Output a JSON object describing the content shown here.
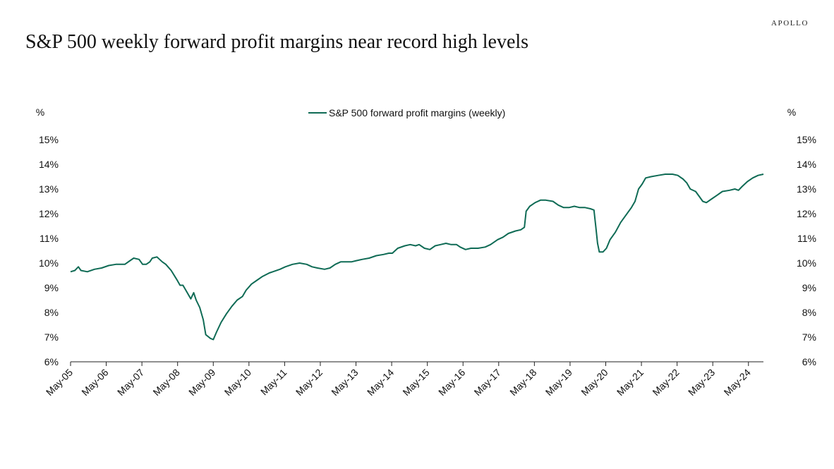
{
  "header": {
    "brand": "APOLLO",
    "title": "S&P 500 weekly forward profit margins near record high levels"
  },
  "chart_data": {
    "type": "line",
    "title": "S&P 500 weekly forward profit margins near record high levels",
    "y_unit_left": "%",
    "y_unit_right": "%",
    "ylim": [
      6,
      15
    ],
    "y_ticks": [
      6,
      7,
      8,
      9,
      10,
      11,
      12,
      13,
      14,
      15
    ],
    "y_tick_labels": [
      "6%",
      "7%",
      "8%",
      "9%",
      "10%",
      "11%",
      "12%",
      "13%",
      "14%",
      "15%"
    ],
    "x_range": [
      2005.33,
      2024.75
    ],
    "x_ticks": [
      2005.33,
      2006.33,
      2007.33,
      2008.33,
      2009.33,
      2010.33,
      2011.33,
      2012.33,
      2013.33,
      2014.33,
      2015.33,
      2016.33,
      2017.33,
      2018.33,
      2019.33,
      2020.33,
      2021.33,
      2022.33,
      2023.33,
      2024.33
    ],
    "x_tick_labels": [
      "May-05",
      "May-06",
      "May-07",
      "May-08",
      "May-09",
      "May-10",
      "May-11",
      "May-12",
      "May-13",
      "May-14",
      "May-15",
      "May-16",
      "May-17",
      "May-18",
      "May-19",
      "May-20",
      "May-21",
      "May-22",
      "May-23",
      "May-24"
    ],
    "legend_position": "top-center",
    "grid": false,
    "series": [
      {
        "name": "S&P 500 forward profit margins (weekly)",
        "color": "#0f6b55",
        "points": [
          [
            2005.33,
            9.65
          ],
          [
            2005.45,
            9.7
          ],
          [
            2005.55,
            9.85
          ],
          [
            2005.62,
            9.7
          ],
          [
            2005.8,
            9.65
          ],
          [
            2006.0,
            9.75
          ],
          [
            2006.2,
            9.8
          ],
          [
            2006.4,
            9.9
          ],
          [
            2006.6,
            9.95
          ],
          [
            2006.85,
            9.95
          ],
          [
            2007.0,
            10.1
          ],
          [
            2007.1,
            10.2
          ],
          [
            2007.25,
            10.15
          ],
          [
            2007.35,
            9.95
          ],
          [
            2007.45,
            9.95
          ],
          [
            2007.55,
            10.05
          ],
          [
            2007.62,
            10.2
          ],
          [
            2007.75,
            10.25
          ],
          [
            2007.9,
            10.05
          ],
          [
            2008.0,
            9.95
          ],
          [
            2008.15,
            9.7
          ],
          [
            2008.3,
            9.35
          ],
          [
            2008.4,
            9.1
          ],
          [
            2008.48,
            9.1
          ],
          [
            2008.6,
            8.8
          ],
          [
            2008.7,
            8.55
          ],
          [
            2008.78,
            8.8
          ],
          [
            2008.85,
            8.5
          ],
          [
            2008.95,
            8.2
          ],
          [
            2009.05,
            7.7
          ],
          [
            2009.12,
            7.1
          ],
          [
            2009.25,
            6.95
          ],
          [
            2009.33,
            6.9
          ],
          [
            2009.42,
            7.2
          ],
          [
            2009.55,
            7.6
          ],
          [
            2009.7,
            7.95
          ],
          [
            2009.85,
            8.25
          ],
          [
            2010.0,
            8.5
          ],
          [
            2010.15,
            8.65
          ],
          [
            2010.25,
            8.9
          ],
          [
            2010.4,
            9.15
          ],
          [
            2010.55,
            9.3
          ],
          [
            2010.7,
            9.45
          ],
          [
            2010.9,
            9.6
          ],
          [
            2011.0,
            9.65
          ],
          [
            2011.2,
            9.75
          ],
          [
            2011.35,
            9.85
          ],
          [
            2011.55,
            9.95
          ],
          [
            2011.75,
            10.0
          ],
          [
            2011.95,
            9.95
          ],
          [
            2012.1,
            9.85
          ],
          [
            2012.25,
            9.8
          ],
          [
            2012.45,
            9.75
          ],
          [
            2012.6,
            9.8
          ],
          [
            2012.75,
            9.95
          ],
          [
            2012.9,
            10.05
          ],
          [
            2013.05,
            10.05
          ],
          [
            2013.2,
            10.05
          ],
          [
            2013.35,
            10.1
          ],
          [
            2013.5,
            10.15
          ],
          [
            2013.7,
            10.2
          ],
          [
            2013.9,
            10.3
          ],
          [
            2014.1,
            10.35
          ],
          [
            2014.25,
            10.4
          ],
          [
            2014.35,
            10.4
          ],
          [
            2014.5,
            10.6
          ],
          [
            2014.7,
            10.7
          ],
          [
            2014.85,
            10.75
          ],
          [
            2015.0,
            10.7
          ],
          [
            2015.1,
            10.75
          ],
          [
            2015.25,
            10.6
          ],
          [
            2015.4,
            10.55
          ],
          [
            2015.55,
            10.7
          ],
          [
            2015.7,
            10.75
          ],
          [
            2015.85,
            10.8
          ],
          [
            2016.0,
            10.75
          ],
          [
            2016.15,
            10.75
          ],
          [
            2016.25,
            10.65
          ],
          [
            2016.4,
            10.55
          ],
          [
            2016.55,
            10.6
          ],
          [
            2016.75,
            10.6
          ],
          [
            2016.95,
            10.65
          ],
          [
            2017.1,
            10.75
          ],
          [
            2017.3,
            10.95
          ],
          [
            2017.45,
            11.05
          ],
          [
            2017.6,
            11.2
          ],
          [
            2017.8,
            11.3
          ],
          [
            2017.95,
            11.35
          ],
          [
            2018.05,
            11.45
          ],
          [
            2018.1,
            12.1
          ],
          [
            2018.2,
            12.3
          ],
          [
            2018.35,
            12.45
          ],
          [
            2018.5,
            12.55
          ],
          [
            2018.65,
            12.55
          ],
          [
            2018.85,
            12.5
          ],
          [
            2019.0,
            12.35
          ],
          [
            2019.15,
            12.25
          ],
          [
            2019.3,
            12.25
          ],
          [
            2019.45,
            12.3
          ],
          [
            2019.6,
            12.25
          ],
          [
            2019.75,
            12.25
          ],
          [
            2019.9,
            12.2
          ],
          [
            2020.0,
            12.15
          ],
          [
            2020.05,
            11.5
          ],
          [
            2020.1,
            10.8
          ],
          [
            2020.15,
            10.45
          ],
          [
            2020.25,
            10.45
          ],
          [
            2020.35,
            10.6
          ],
          [
            2020.45,
            10.95
          ],
          [
            2020.6,
            11.25
          ],
          [
            2020.75,
            11.65
          ],
          [
            2020.9,
            11.95
          ],
          [
            2021.05,
            12.25
          ],
          [
            2021.15,
            12.5
          ],
          [
            2021.25,
            13.0
          ],
          [
            2021.35,
            13.2
          ],
          [
            2021.45,
            13.45
          ],
          [
            2021.6,
            13.5
          ],
          [
            2021.8,
            13.55
          ],
          [
            2022.0,
            13.6
          ],
          [
            2022.2,
            13.6
          ],
          [
            2022.35,
            13.55
          ],
          [
            2022.5,
            13.4
          ],
          [
            2022.6,
            13.25
          ],
          [
            2022.7,
            13.0
          ],
          [
            2022.85,
            12.9
          ],
          [
            2022.95,
            12.7
          ],
          [
            2023.05,
            12.5
          ],
          [
            2023.15,
            12.45
          ],
          [
            2023.3,
            12.6
          ],
          [
            2023.45,
            12.75
          ],
          [
            2023.6,
            12.9
          ],
          [
            2023.8,
            12.95
          ],
          [
            2023.95,
            13.0
          ],
          [
            2024.05,
            12.95
          ],
          [
            2024.15,
            13.1
          ],
          [
            2024.3,
            13.3
          ],
          [
            2024.45,
            13.45
          ],
          [
            2024.6,
            13.55
          ],
          [
            2024.75,
            13.6
          ]
        ]
      }
    ]
  }
}
